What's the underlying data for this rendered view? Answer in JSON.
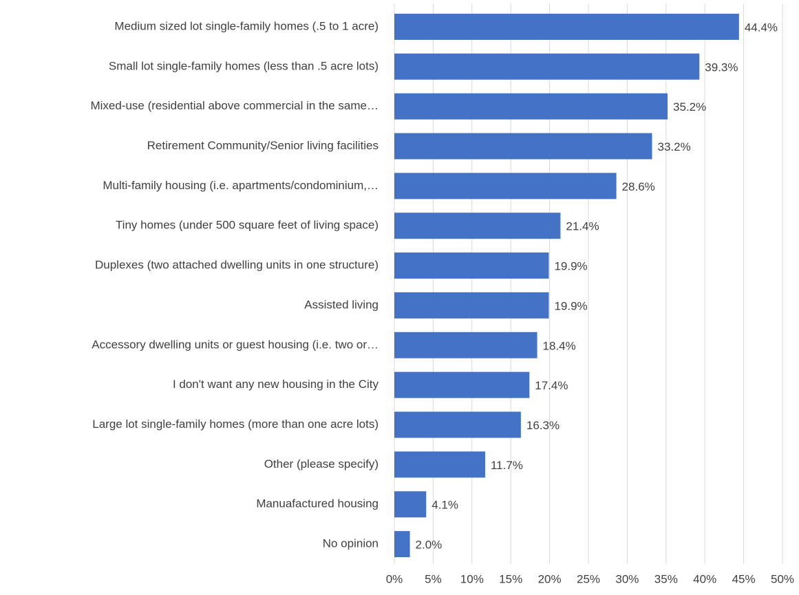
{
  "chart_data": {
    "type": "hbar",
    "categories": [
      "Medium sized lot single-family homes (.5 to 1 acre)",
      "Small lot single-family homes (less than .5 acre lots)",
      "Mixed-use (residential above commercial in the same…",
      "Retirement Community/Senior living facilities",
      "Multi-family housing (i.e. apartments/condominium,…",
      "Tiny homes (under 500 square feet of living space)",
      "Duplexes (two attached dwelling units in one structure)",
      "Assisted living",
      "Accessory dwelling units or guest housing (i.e. two or…",
      "I don't want any new housing in the City",
      "Large lot single-family homes (more than one acre lots)",
      "Other (please specify)",
      "Manuafactured housing",
      "No opinion"
    ],
    "values": [
      44.4,
      39.3,
      35.2,
      33.2,
      28.6,
      21.4,
      19.9,
      19.9,
      18.4,
      17.4,
      16.3,
      11.7,
      4.1,
      2.0
    ],
    "value_labels": [
      "44.4%",
      "39.3%",
      "35.2%",
      "33.2%",
      "28.6%",
      "21.4%",
      "19.9%",
      "19.9%",
      "18.4%",
      "17.4%",
      "16.3%",
      "11.7%",
      "4.1%",
      "2.0%"
    ],
    "color": "#4472c4",
    "xlim": [
      0,
      50
    ],
    "xticks": [
      {
        "value": 0,
        "label": "0%"
      },
      {
        "value": 5,
        "label": "5%"
      },
      {
        "value": 10,
        "label": "10%"
      },
      {
        "value": 15,
        "label": "15%"
      },
      {
        "value": 20,
        "label": "20%"
      },
      {
        "value": 25,
        "label": "25%"
      },
      {
        "value": 30,
        "label": "30%"
      },
      {
        "value": 35,
        "label": "35%"
      },
      {
        "value": 40,
        "label": "40%"
      },
      {
        "value": 45,
        "label": "45%"
      },
      {
        "value": 50,
        "label": "50%"
      }
    ],
    "grid": true
  }
}
